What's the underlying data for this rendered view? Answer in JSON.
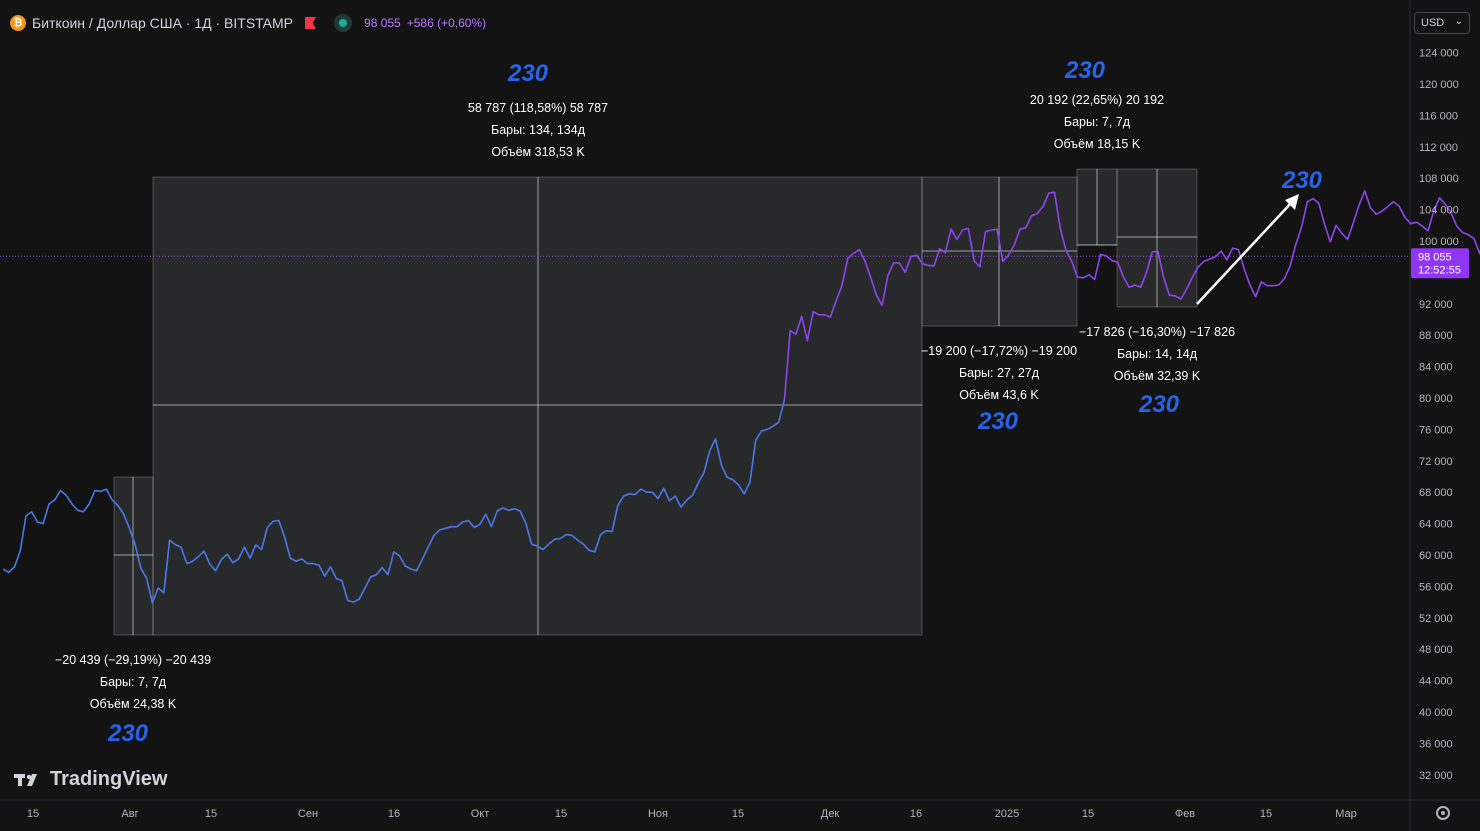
{
  "header": {
    "coin_glyph": "₿",
    "symbol": "Биткоин / Доллар США · 1Д · BITSTAMP",
    "price": "98 055",
    "change": "+586 (+0,60%)"
  },
  "currency": {
    "label": "USD"
  },
  "logo": {
    "text": "TradingView"
  },
  "price_label": {
    "value": "98 055",
    "time": "12:52:55"
  },
  "colors": {
    "background": "#131313",
    "line_blue": "#4a78e8",
    "line_purple": "#8e45ee",
    "price_tag": "#9035f4",
    "annotation_number": "#2a62e8"
  },
  "chart_data": {
    "type": "line",
    "title": "Биткоин / Доллар США · 1Д · BITSTAMP",
    "ylim": [
      30000,
      126000
    ],
    "y_ticks": [
      "124 000",
      "120 000",
      "116 000",
      "112 000",
      "108 000",
      "104 000",
      "100 000",
      "92 000",
      "88 000",
      "84 000",
      "80 000",
      "76 000",
      "72 000",
      "68 000",
      "64 000",
      "60 000",
      "56 000",
      "52 000",
      "48 000",
      "44 000",
      "40 000",
      "36 000",
      "32 000"
    ],
    "x_ticks": [
      "15",
      "Авг",
      "15",
      "Сен",
      "16",
      "Окт",
      "15",
      "Ноя",
      "15",
      "Дек",
      "16",
      "2025",
      "15",
      "Фев",
      "15",
      "Мар"
    ],
    "series": [
      {
        "values": [
          58200,
          57800,
          58500,
          60500,
          65000,
          65500,
          64200,
          64000,
          66500,
          67000,
          68200,
          67600,
          66500,
          65700,
          65500,
          66500,
          68200,
          68100,
          68400,
          67000
        ]
      },
      {
        "values": [
          67000,
          66300,
          65200,
          63400,
          61300,
          58300,
          57000,
          53900,
          55800,
          55200,
          61900,
          61300,
          61000,
          58900,
          59200,
          59800,
          60500,
          58800,
          58000,
          59400,
          60100,
          59000,
          59500,
          61000,
          59600,
          61300,
          60700,
          63500,
          64300,
          64400,
          62300,
          59600,
          59200,
          59500,
          58900,
          58900,
          58700,
          57300,
          58500,
          57000,
          56700,
          54200,
          54000,
          54400,
          55800,
          57200,
          57500,
          58400,
          57500,
          60400,
          59900,
          58600,
          58200,
          58000,
          59500,
          61000,
          62500,
          63200,
          63400,
          63600,
          63600,
          64200,
          64400,
          63500,
          63900,
          65200,
          63600,
          65600,
          66000,
          65700,
          65900,
          65600,
          64000,
          61400,
          61100,
          60700,
          61400,
          62000,
          62100,
          62600,
          62500,
          61900,
          61400,
          60600,
          60400,
          62600,
          63100,
          63000,
          66300,
          67500,
          67800,
          67700,
          68400,
          68000,
          68000,
          67200,
          68500,
          66900,
          67500,
          66100,
          67000,
          67600,
          69200,
          70500,
          73300,
          74800,
          71500,
          69900,
          69600,
          68900,
          67800,
          69300,
          74600,
          75800,
          76000,
          76400,
          76900,
          79800
        ]
      },
      {
        "values": [
          79800,
          88600,
          88100,
          90400,
          87300,
          91000,
          90600,
          90600,
          90300,
          92400,
          94300,
          97800,
          98400,
          98900,
          97500,
          95400,
          93100,
          91800,
          95600,
          97200,
          97200,
          96000,
          98000,
          98200,
          97100,
          96900,
          96800,
          99000,
          98500,
          101500,
          100200,
          101400,
          101600,
          97500,
          96700,
          101200,
          101400,
          101500,
          97400,
          98200,
          99500,
          101500,
          101700,
          103200,
          103500,
          104400,
          106100,
          106200,
          101600,
          98800,
          97400,
          95400,
          95300,
          95700,
          95100,
          98300,
          98100,
          97500,
          97300,
          95400,
          94100,
          94400,
          94100,
          96000,
          98600,
          98700,
          95300,
          93100,
          93000,
          92600,
          93900,
          95400,
          96700,
          97400,
          97700,
          98000,
          98700,
          97600,
          99100,
          98900,
          96500,
          94400,
          92900,
          94800,
          94300,
          94300,
          94400,
          95200,
          96800,
          99600,
          101800,
          105000,
          105400,
          104800,
          102100,
          99900,
          102000,
          101000,
          100200,
          102300,
          104600,
          106400,
          104200,
          103400,
          103800,
          104400,
          105000,
          104400,
          103000,
          102200,
          102400,
          101900,
          101300,
          103800,
          105500,
          104700,
          103600,
          101900,
          101100,
          100800,
          100300,
          98400,
          101400,
          101600,
          99000,
          96400,
          95400,
          95100,
          95000,
          95100,
          95200,
          96000,
          96400,
          96900,
          97400
        ]
      }
    ],
    "measurements": [
      {
        "text": "−20 439 (−29,19%) −20 439",
        "bars": "Бары: 7, 7д",
        "volume": "Объём 24,38 K",
        "number": "230"
      },
      {
        "text": "58 787 (118,58%) 58 787",
        "bars": "Бары: 134, 134д",
        "volume": "Объём 318,53 K",
        "number": "230"
      },
      {
        "text": "−19 200 (−17,72%) −19 200",
        "bars": "Бары: 27, 27д",
        "volume": "Объём 43,6 K",
        "number": "230"
      },
      {
        "text": "20 192 (22,65%) 20 192",
        "bars": "Бары: 7, 7д",
        "volume": "Объём 18,15 K",
        "number": "230"
      },
      {
        "text": "−17 826 (−16,30%) −17 826",
        "bars": "Бары: 14, 14д",
        "volume": "Объём 32,39 K",
        "number": "230"
      }
    ],
    "arrow_label": "230",
    "current_price": 98055,
    "grid": false
  }
}
